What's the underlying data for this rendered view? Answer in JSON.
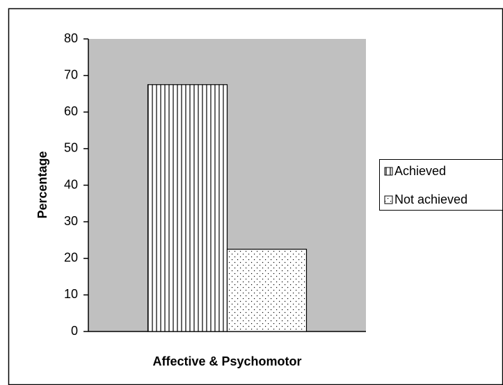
{
  "chart_data": {
    "type": "bar",
    "categories": [
      "Affective & Psychomotor"
    ],
    "series": [
      {
        "name": "Achieved",
        "color": "#000000",
        "pattern": "vertical-stripes",
        "values": [
          67.5
        ]
      },
      {
        "name": "Not achieved",
        "color": "#000000",
        "pattern": "dots",
        "values": [
          22.5
        ]
      }
    ],
    "ylabel": "Percentage",
    "ylim": [
      0,
      80
    ],
    "yticks": [
      0,
      10,
      20,
      30,
      40,
      50,
      60,
      70,
      80
    ],
    "grid": false,
    "legend": "right"
  }
}
